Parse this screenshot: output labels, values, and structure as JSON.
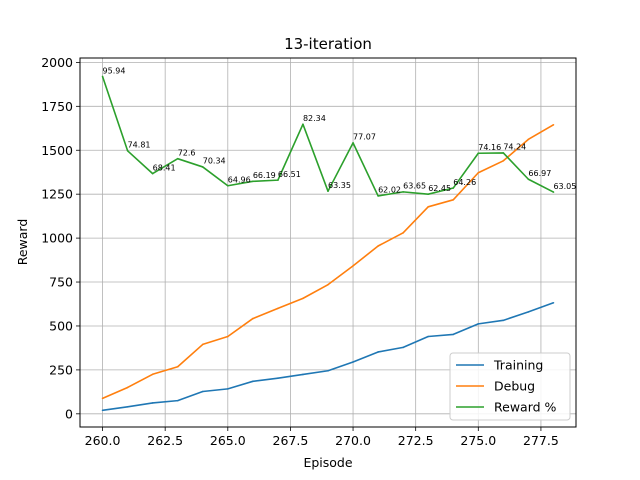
{
  "chart_data": {
    "type": "line",
    "title": "13-iteration",
    "xlabel": "Episode",
    "ylabel": "Reward",
    "xlim": [
      259.1,
      278.9
    ],
    "ylim": [
      -75,
      2025
    ],
    "grid": true,
    "legend_position": "lower-right",
    "x": [
      260,
      261,
      262,
      263,
      264,
      265,
      266,
      267,
      268,
      269,
      270,
      271,
      272,
      273,
      274,
      275,
      276,
      277,
      278
    ],
    "x_ticks": [
      260.0,
      262.5,
      265.0,
      267.5,
      270.0,
      272.5,
      275.0,
      277.5
    ],
    "x_tick_labels": [
      "260.0",
      "262.5",
      "265.0",
      "267.5",
      "270.0",
      "272.5",
      "275.0",
      "277.5"
    ],
    "y_ticks": [
      0,
      250,
      500,
      750,
      1000,
      1250,
      1500,
      1750,
      2000
    ],
    "y_tick_labels": [
      "0",
      "250",
      "500",
      "750",
      "1000",
      "1250",
      "1500",
      "1750",
      "2000"
    ],
    "series": [
      {
        "name": "Training",
        "color": "#1f77b4",
        "values": [
          20,
          40,
          62,
          75,
          127,
          142,
          185,
          203,
          224,
          245,
          295,
          352,
          378,
          440,
          452,
          512,
          532,
          580,
          632
        ]
      },
      {
        "name": "Debug",
        "color": "#ff7f0e",
        "values": [
          88,
          150,
          225,
          268,
          395,
          440,
          542,
          600,
          657,
          735,
          842,
          955,
          1030,
          1178,
          1218,
          1372,
          1440,
          1562,
          1645
        ]
      },
      {
        "name": "Reward %",
        "color": "#2ca02c",
        "values": [
          1920,
          1497,
          1367,
          1452,
          1405,
          1298,
          1323,
          1330,
          1648,
          1267,
          1542,
          1240,
          1263,
          1250,
          1285,
          1483,
          1485,
          1335,
          1262
        ],
        "labels": [
          "95.94",
          "74.81",
          "68.41",
          "72.6",
          "70.34",
          "64.96",
          "66.19",
          "66.51",
          "82.34",
          "63.35",
          "77.07",
          "62.02",
          "63.65",
          "62.45",
          "64.26",
          "74.16",
          "74.24",
          "66.97",
          "63.05"
        ]
      }
    ]
  }
}
